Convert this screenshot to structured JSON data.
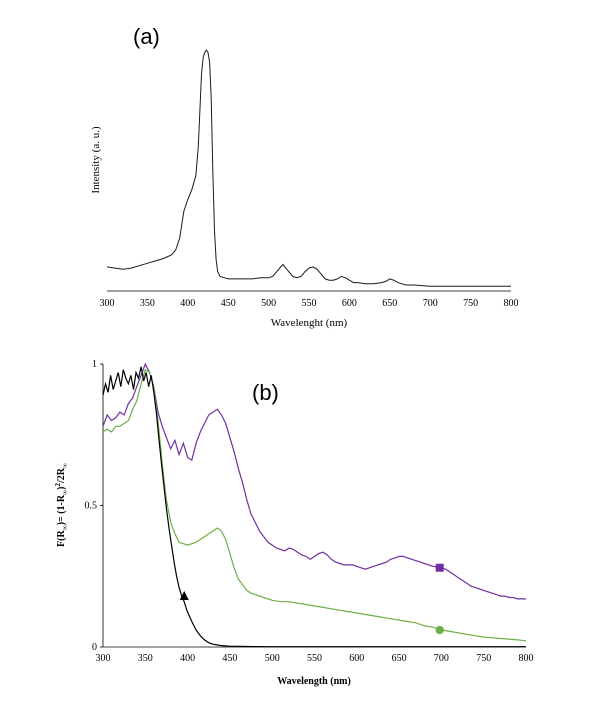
{
  "chart_data": [
    {
      "type": "line",
      "panel_label": "(a)",
      "xlabel": "Wavelenght (nm)",
      "ylabel": "Intensity (a. u.)",
      "xlim": [
        300,
        800
      ],
      "xticks": [
        "300",
        "350",
        "400",
        "450",
        "500",
        "550",
        "600",
        "650",
        "700",
        "750",
        "800"
      ],
      "y_ticks_shown": false,
      "series": [
        {
          "color": "#1a1a1a",
          "x": [
            300,
            310,
            320,
            330,
            340,
            350,
            360,
            370,
            380,
            385,
            390,
            395,
            400,
            405,
            410,
            413,
            415,
            417,
            419,
            421,
            423,
            425,
            427,
            429,
            431,
            433,
            435,
            437,
            440,
            445,
            450,
            460,
            470,
            480,
            490,
            500,
            505,
            510,
            515,
            518,
            520,
            525,
            530,
            535,
            540,
            545,
            550,
            555,
            560,
            565,
            570,
            575,
            580,
            585,
            590,
            595,
            600,
            605,
            610,
            620,
            630,
            640,
            645,
            650,
            655,
            660,
            665,
            670,
            680,
            700,
            720,
            750,
            800
          ],
          "y": [
            0.1,
            0.095,
            0.09,
            0.095,
            0.105,
            0.115,
            0.125,
            0.135,
            0.15,
            0.17,
            0.22,
            0.33,
            0.38,
            0.42,
            0.48,
            0.6,
            0.75,
            0.9,
            0.97,
            0.99,
            1.0,
            0.99,
            0.95,
            0.8,
            0.5,
            0.25,
            0.13,
            0.08,
            0.06,
            0.055,
            0.05,
            0.05,
            0.05,
            0.05,
            0.055,
            0.055,
            0.06,
            0.08,
            0.1,
            0.11,
            0.1,
            0.08,
            0.06,
            0.055,
            0.06,
            0.08,
            0.095,
            0.1,
            0.09,
            0.07,
            0.05,
            0.045,
            0.045,
            0.05,
            0.06,
            0.055,
            0.045,
            0.035,
            0.035,
            0.03,
            0.03,
            0.035,
            0.04,
            0.05,
            0.045,
            0.035,
            0.03,
            0.025,
            0.025,
            0.02,
            0.02,
            0.02,
            0.02
          ]
        }
      ]
    },
    {
      "type": "line",
      "panel_label": "(b)",
      "xlabel": "Wavelength (nm)",
      "ylabel_parts": {
        "a": "F(R",
        "b": "∞",
        "c": ")= (1-R",
        "d": "∞",
        "e": ")",
        "f": "2",
        "g": "/2R",
        "h": "∞"
      },
      "xlim": [
        300,
        800
      ],
      "ylim": [
        0,
        1
      ],
      "xticks": [
        "300",
        "350",
        "400",
        "450",
        "500",
        "550",
        "600",
        "650",
        "700",
        "750",
        "800"
      ],
      "yticks": [
        "0",
        "0.5",
        "1"
      ],
      "grid": false,
      "series": [
        {
          "color": "#7030a0",
          "marker": "square",
          "marker_at": [
            698,
            0.28
          ],
          "x": [
            300,
            305,
            310,
            315,
            320,
            325,
            330,
            335,
            340,
            345,
            350,
            355,
            360,
            365,
            370,
            375,
            380,
            385,
            390,
            395,
            400,
            405,
            410,
            415,
            420,
            425,
            430,
            435,
            440,
            445,
            450,
            455,
            460,
            465,
            470,
            475,
            480,
            485,
            490,
            495,
            500,
            505,
            510,
            515,
            520,
            525,
            530,
            535,
            540,
            545,
            550,
            555,
            560,
            565,
            570,
            575,
            580,
            585,
            590,
            595,
            600,
            605,
            610,
            615,
            620,
            625,
            630,
            635,
            640,
            645,
            650,
            655,
            660,
            665,
            670,
            675,
            680,
            685,
            690,
            695,
            700,
            705,
            710,
            715,
            720,
            725,
            730,
            735,
            740,
            745,
            750,
            755,
            760,
            765,
            770,
            775,
            780,
            785,
            790,
            795,
            800
          ],
          "y": [
            0.78,
            0.82,
            0.8,
            0.81,
            0.83,
            0.82,
            0.86,
            0.88,
            0.92,
            0.96,
            1.0,
            0.97,
            0.92,
            0.83,
            0.78,
            0.74,
            0.7,
            0.73,
            0.68,
            0.72,
            0.67,
            0.66,
            0.72,
            0.76,
            0.79,
            0.82,
            0.83,
            0.84,
            0.82,
            0.79,
            0.74,
            0.69,
            0.63,
            0.58,
            0.52,
            0.47,
            0.44,
            0.41,
            0.39,
            0.37,
            0.36,
            0.35,
            0.345,
            0.34,
            0.35,
            0.345,
            0.335,
            0.325,
            0.32,
            0.31,
            0.32,
            0.33,
            0.335,
            0.325,
            0.31,
            0.3,
            0.295,
            0.29,
            0.29,
            0.29,
            0.285,
            0.28,
            0.275,
            0.28,
            0.285,
            0.29,
            0.295,
            0.3,
            0.31,
            0.315,
            0.32,
            0.32,
            0.315,
            0.31,
            0.305,
            0.3,
            0.295,
            0.29,
            0.285,
            0.283,
            0.28,
            0.275,
            0.265,
            0.255,
            0.245,
            0.235,
            0.225,
            0.215,
            0.21,
            0.205,
            0.2,
            0.195,
            0.19,
            0.185,
            0.18,
            0.18,
            0.175,
            0.175,
            0.17,
            0.17,
            0.17
          ]
        },
        {
          "color": "#70ad47",
          "marker": "circle",
          "marker_at": [
            698,
            0.06
          ],
          "x": [
            300,
            305,
            310,
            315,
            320,
            325,
            330,
            335,
            340,
            345,
            350,
            355,
            360,
            365,
            370,
            375,
            380,
            385,
            390,
            395,
            400,
            405,
            410,
            415,
            420,
            425,
            430,
            435,
            440,
            445,
            450,
            455,
            460,
            465,
            470,
            475,
            480,
            485,
            490,
            495,
            500,
            510,
            520,
            530,
            540,
            550,
            560,
            570,
            580,
            590,
            600,
            610,
            620,
            630,
            640,
            650,
            660,
            670,
            680,
            690,
            700,
            710,
            720,
            730,
            740,
            750,
            760,
            770,
            780,
            790,
            800
          ],
          "y": [
            0.76,
            0.77,
            0.76,
            0.78,
            0.78,
            0.79,
            0.8,
            0.84,
            0.87,
            0.93,
            0.98,
            0.97,
            0.92,
            0.8,
            0.65,
            0.52,
            0.44,
            0.4,
            0.37,
            0.365,
            0.36,
            0.365,
            0.37,
            0.38,
            0.39,
            0.4,
            0.41,
            0.42,
            0.41,
            0.38,
            0.33,
            0.28,
            0.24,
            0.22,
            0.2,
            0.19,
            0.185,
            0.18,
            0.175,
            0.17,
            0.165,
            0.16,
            0.16,
            0.155,
            0.15,
            0.145,
            0.14,
            0.135,
            0.13,
            0.125,
            0.12,
            0.115,
            0.11,
            0.105,
            0.1,
            0.095,
            0.09,
            0.085,
            0.075,
            0.07,
            0.06,
            0.055,
            0.05,
            0.045,
            0.04,
            0.035,
            0.033,
            0.03,
            0.028,
            0.025,
            0.022
          ]
        },
        {
          "color": "#000000",
          "marker": "triangle",
          "marker_at": [
            396,
            0.18
          ],
          "x": [
            300,
            303,
            306,
            309,
            312,
            315,
            318,
            321,
            324,
            327,
            330,
            333,
            336,
            339,
            342,
            345,
            348,
            351,
            354,
            357,
            360,
            363,
            366,
            369,
            372,
            375,
            378,
            381,
            384,
            387,
            390,
            393,
            396,
            399,
            402,
            405,
            410,
            415,
            420,
            425,
            430,
            440,
            450,
            460,
            500,
            600,
            700,
            800
          ],
          "y": [
            0.89,
            0.93,
            0.9,
            0.96,
            0.91,
            0.94,
            0.97,
            0.92,
            0.98,
            0.95,
            0.93,
            0.96,
            0.91,
            0.97,
            0.95,
            0.99,
            0.94,
            0.97,
            0.92,
            0.96,
            0.9,
            0.83,
            0.74,
            0.65,
            0.57,
            0.49,
            0.42,
            0.36,
            0.3,
            0.25,
            0.21,
            0.18,
            0.16,
            0.13,
            0.11,
            0.09,
            0.06,
            0.04,
            0.025,
            0.015,
            0.01,
            0.005,
            0.003,
            0.002,
            0.001,
            0.001,
            0.001,
            0.001
          ]
        }
      ]
    }
  ]
}
